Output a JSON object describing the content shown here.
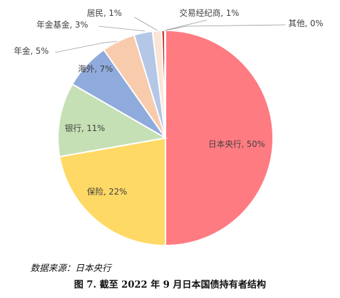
{
  "chart_data": {
    "type": "pie",
    "slices": [
      {
        "name": "日本央行",
        "value": 50,
        "label": "日本央行, 50%",
        "color": "#FF7B82"
      },
      {
        "name": "保险",
        "value": 22,
        "label": "保险, 22%",
        "color": "#FFD966"
      },
      {
        "name": "银行",
        "value": 11,
        "label": "银行, 11%",
        "color": "#C5E0B4"
      },
      {
        "name": "海外",
        "value": 7,
        "label": "海外, 7%",
        "color": "#8FAADC"
      },
      {
        "name": "年金",
        "value": 5,
        "label": "年金, 5%",
        "color": "#F8CBAD"
      },
      {
        "name": "年金基金",
        "value": 3,
        "label": "年金基金, 3%",
        "color": "#B4C7E7"
      },
      {
        "name": "居民",
        "value": 1,
        "label": "居民, 1%",
        "color": "#FBE5D6"
      },
      {
        "name": "交易经纪商",
        "value": 1,
        "label": "交易经纪商, 1%",
        "color": "#C00000"
      },
      {
        "name": "其他",
        "value": 0,
        "label": "其他, 0%",
        "color": "#F4B183"
      }
    ]
  },
  "source_text": "数据来源：日本央行",
  "caption": "图 7. 截至 2022 年 9 月日本国债持有者结构"
}
